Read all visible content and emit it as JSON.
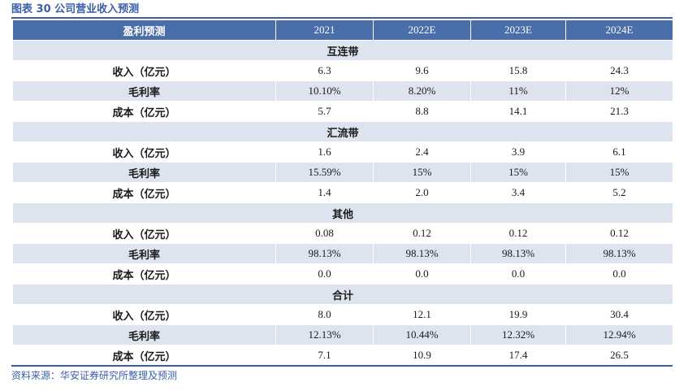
{
  "caption": "图表 30 公司营业收入预测",
  "header": {
    "first": "盈利预测",
    "years": [
      "2021",
      "2022E",
      "2023E",
      "2024E"
    ]
  },
  "groups": [
    {
      "name": "互连带",
      "rows": [
        {
          "label": "收入（亿元）",
          "values": [
            "6.3",
            "9.6",
            "15.8",
            "24.3"
          ]
        },
        {
          "label": "毛利率",
          "values": [
            "10.10%",
            "8.20%",
            "11%",
            "12%"
          ]
        },
        {
          "label": "成本（亿元）",
          "values": [
            "5.7",
            "8.8",
            "14.1",
            "21.3"
          ]
        }
      ]
    },
    {
      "name": "汇流带",
      "rows": [
        {
          "label": "收入（亿元）",
          "values": [
            "1.6",
            "2.4",
            "3.9",
            "6.1"
          ]
        },
        {
          "label": "毛利率",
          "values": [
            "15.59%",
            "15%",
            "15%",
            "15%"
          ]
        },
        {
          "label": "成本（亿元）",
          "values": [
            "1.4",
            "2.0",
            "3.4",
            "5.2"
          ]
        }
      ]
    },
    {
      "name": "其他",
      "rows": [
        {
          "label": "收入（亿元）",
          "values": [
            "0.08",
            "0.12",
            "0.12",
            "0.12"
          ]
        },
        {
          "label": "毛利率",
          "values": [
            "98.13%",
            "98.13%",
            "98.13%",
            "98.13%"
          ]
        },
        {
          "label": "成本（亿元）",
          "values": [
            "0.0",
            "0.0",
            "0.0",
            "0.0"
          ]
        }
      ]
    },
    {
      "name": "合计",
      "rows": [
        {
          "label": "收入（亿元）",
          "values": [
            "8.0",
            "12.1",
            "19.9",
            "30.4"
          ]
        },
        {
          "label": "毛利率",
          "values": [
            "12.13%",
            "10.44%",
            "12.32%",
            "12.94%"
          ]
        },
        {
          "label": "成本（亿元）",
          "values": [
            "7.1",
            "10.9",
            "17.4",
            "26.5"
          ]
        }
      ]
    }
  ],
  "source": "资料来源：华安证券研究所整理及预测",
  "colors": {
    "header_bg": "#4a6ea9",
    "band_bg": "#dde3ef",
    "accent": "#3a5fa8"
  }
}
